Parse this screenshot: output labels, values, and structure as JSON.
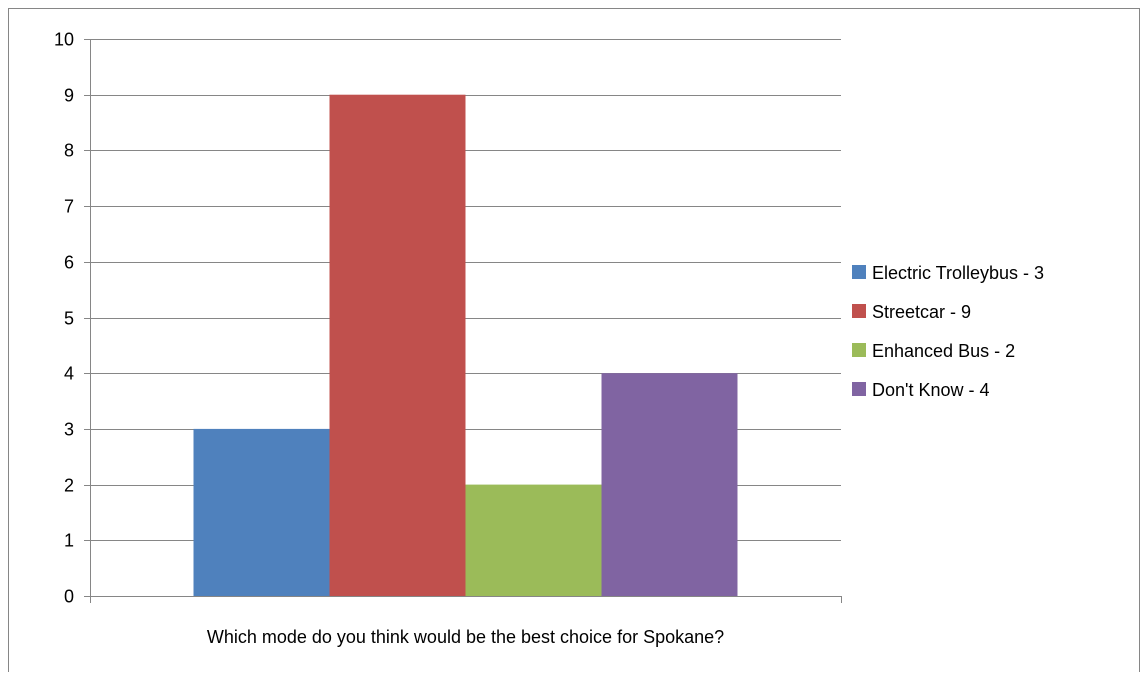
{
  "chart_data": {
    "type": "bar",
    "title": "",
    "xlabel": "Which mode do you think would be the best choice for Spokane?",
    "ylabel": "",
    "ylim": [
      0,
      10
    ],
    "yticks": [
      0,
      1,
      2,
      3,
      4,
      5,
      6,
      7,
      8,
      9,
      10
    ],
    "grid": true,
    "legend_position": "right",
    "categories": [
      "Which mode do you think would be the best choice for Spokane?"
    ],
    "series": [
      {
        "name": "Electric Trolleybus - 3",
        "values": [
          3
        ],
        "color": "#4f81bd"
      },
      {
        "name": "Streetcar - 9",
        "values": [
          9
        ],
        "color": "#c0504d"
      },
      {
        "name": "Enhanced Bus - 2",
        "values": [
          2
        ],
        "color": "#9bbb59"
      },
      {
        "name": "Don't Know - 4",
        "values": [
          4
        ],
        "color": "#8064a2"
      }
    ]
  }
}
